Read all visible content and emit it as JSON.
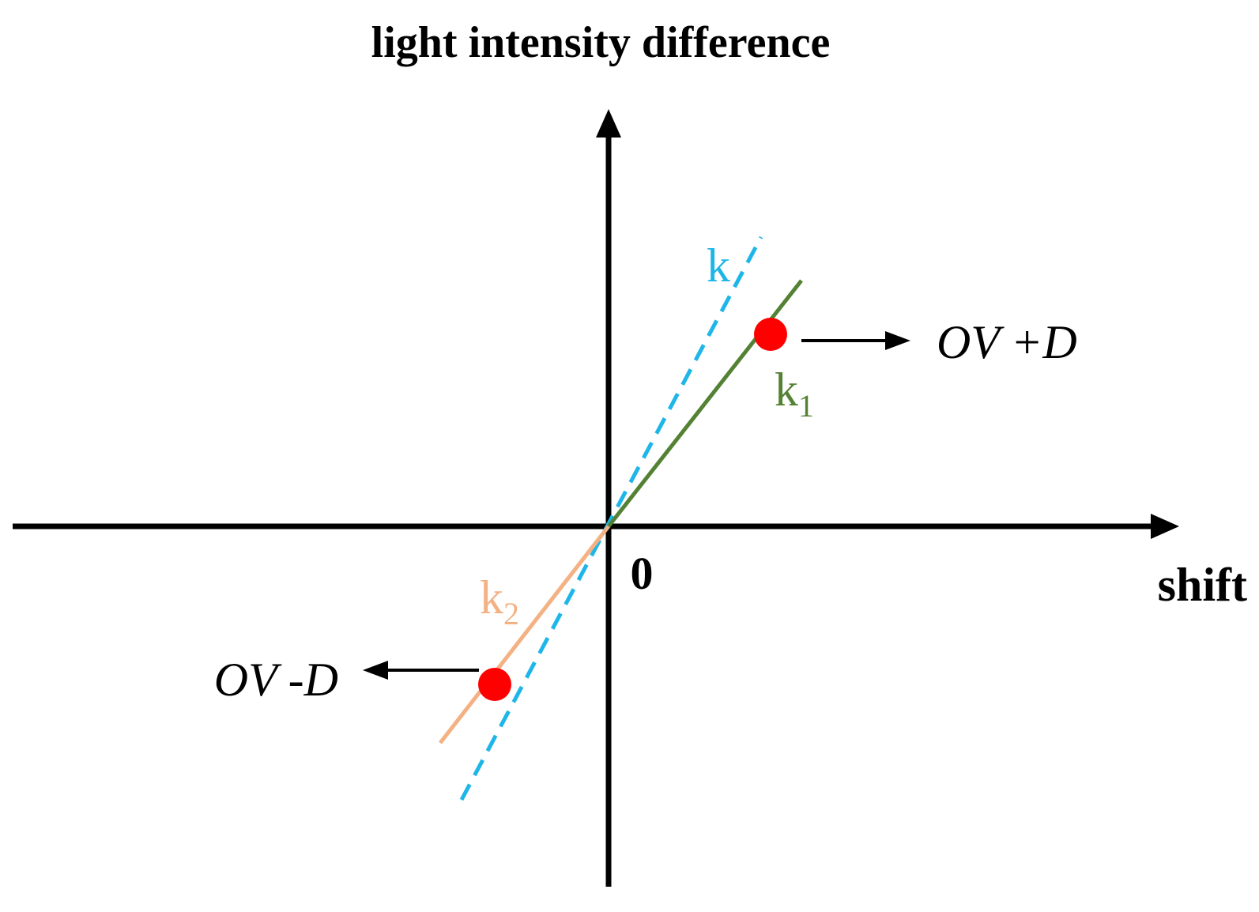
{
  "title": "light intensity difference",
  "x_axis_label": "shift",
  "origin_label": "0",
  "lines": {
    "k": {
      "label": "k",
      "subscript": "",
      "color": "#1EB6E8",
      "style": "dashed"
    },
    "k1": {
      "label": "k",
      "subscript": "1",
      "color": "#548235",
      "style": "solid"
    },
    "k2": {
      "label": "k",
      "subscript": "2",
      "color": "#F4B183",
      "style": "solid"
    }
  },
  "points": {
    "upper": {
      "label": "OV +D",
      "color": "#FF0000"
    },
    "lower": {
      "label": "OV -D",
      "color": "#FF0000"
    }
  },
  "axis_color": "#000000"
}
